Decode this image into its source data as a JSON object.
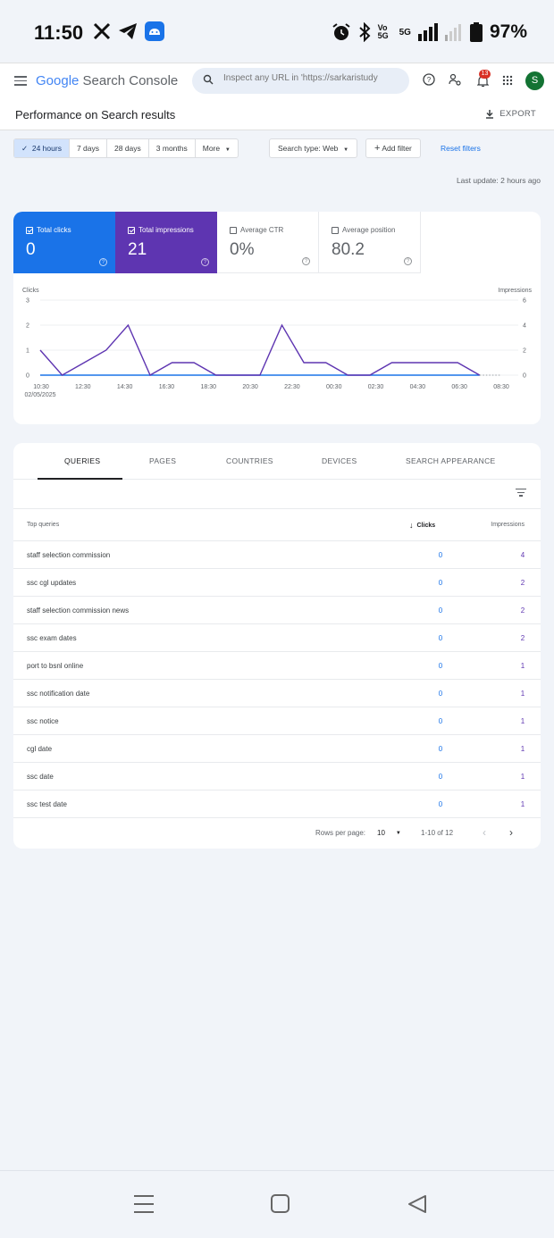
{
  "status_bar": {
    "time": "11:50",
    "battery": "97%",
    "network": "5G",
    "volte": "Vo 5G"
  },
  "app": {
    "logo_prefix": "Google",
    "logo_suffix": "Search Console",
    "search_placeholder": "Inspect any URL in 'https://sarkaristudy",
    "notification_count": "13",
    "avatar_letter": "S"
  },
  "page": {
    "title": "Performance on Search results",
    "export_label": "EXPORT"
  },
  "filters": {
    "ranges": [
      "24 hours",
      "7 days",
      "28 days",
      "3 months",
      "More"
    ],
    "selected_range": "24 hours",
    "search_type": "Search type: Web",
    "add_filter": "Add filter",
    "reset": "Reset filters",
    "last_update": "Last update: 2 hours ago"
  },
  "metrics": {
    "clicks": {
      "label": "Total clicks",
      "value": "0",
      "color": "#1a73e8"
    },
    "impressions": {
      "label": "Total impressions",
      "value": "21",
      "color": "#5e35b1"
    },
    "ctr": {
      "label": "Average CTR",
      "value": "0%"
    },
    "position": {
      "label": "Average position",
      "value": "80.2"
    }
  },
  "chart_data": {
    "type": "line",
    "left_axis_label": "Clicks",
    "right_axis_label": "Impressions",
    "left_ticks": [
      "3",
      "2",
      "1",
      "0"
    ],
    "right_ticks": [
      "6",
      "4",
      "2",
      "0"
    ],
    "ylim_left": [
      0,
      3
    ],
    "ylim_right": [
      0,
      6
    ],
    "x_labels": [
      "10:30",
      "12:30",
      "14:30",
      "16:30",
      "18:30",
      "20:30",
      "22:30",
      "00:30",
      "02:30",
      "04:30",
      "06:30",
      "08:30"
    ],
    "x_sublabel": "02/05/2025",
    "series": [
      {
        "name": "Total clicks",
        "axis": "left",
        "color": "#1a73e8",
        "values": [
          0,
          0,
          0,
          0,
          0,
          0,
          0,
          0,
          0,
          0,
          0,
          0,
          0,
          0,
          0,
          0,
          0,
          0,
          0,
          0,
          0
        ]
      },
      {
        "name": "Total impressions",
        "axis": "right",
        "color": "#5e35b1",
        "values": [
          2,
          0,
          1,
          2,
          4,
          0,
          1,
          1,
          0,
          0,
          0,
          4,
          1,
          1,
          0,
          0,
          1,
          1,
          1,
          1,
          0
        ]
      }
    ]
  },
  "tabs": [
    "QUERIES",
    "PAGES",
    "COUNTRIES",
    "DEVICES",
    "SEARCH APPEARANCE"
  ],
  "table": {
    "headers": {
      "query": "Top queries",
      "clicks": "Clicks",
      "impressions": "Impressions"
    },
    "rows": [
      {
        "query": "staff selection commission",
        "clicks": "0",
        "impressions": "4"
      },
      {
        "query": "ssc cgl updates",
        "clicks": "0",
        "impressions": "2"
      },
      {
        "query": "staff selection commission news",
        "clicks": "0",
        "impressions": "2"
      },
      {
        "query": "ssc exam dates",
        "clicks": "0",
        "impressions": "2"
      },
      {
        "query": "port to bsnl online",
        "clicks": "0",
        "impressions": "1"
      },
      {
        "query": "ssc notification date",
        "clicks": "0",
        "impressions": "1"
      },
      {
        "query": "ssc notice",
        "clicks": "0",
        "impressions": "1"
      },
      {
        "query": "cgl date",
        "clicks": "0",
        "impressions": "1"
      },
      {
        "query": "ssc date",
        "clicks": "0",
        "impressions": "1"
      },
      {
        "query": "ssc test date",
        "clicks": "0",
        "impressions": "1"
      }
    ],
    "pager": {
      "rows_per_page_label": "Rows per page:",
      "rows_per_page": "10",
      "range": "1-10 of 12"
    }
  }
}
